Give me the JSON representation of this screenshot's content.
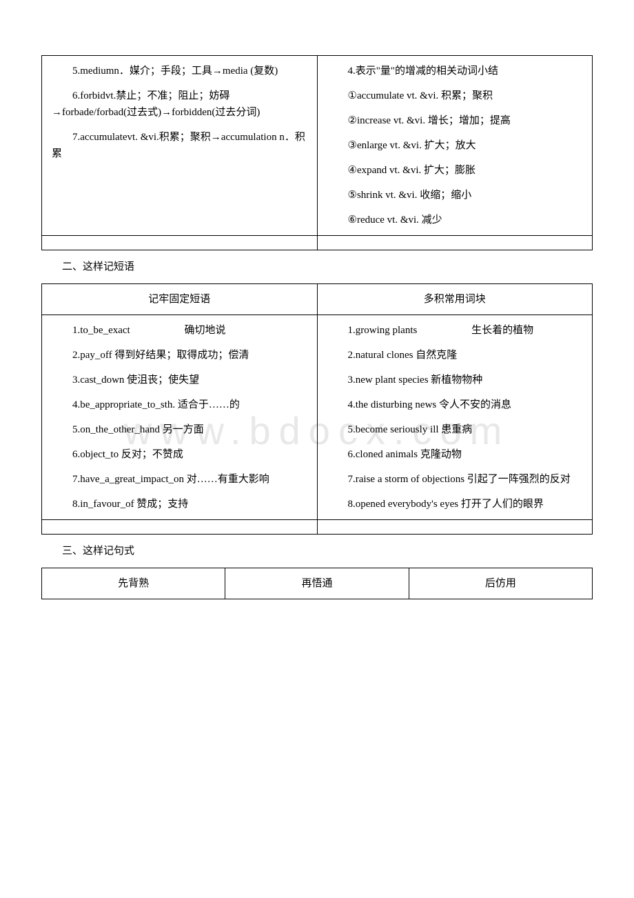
{
  "watermark": "www.bdocx.com",
  "table1": {
    "left": {
      "items": [
        "5.mediumn．媒介；手段；工具→media (复数)",
        "6.forbidvt.禁止；不准；阻止；妨碍→forbade/forbad(过去式)→forbidden(过去分词)",
        "7.accumulatevt. &vi.积累；聚积→accumulation n．积累"
      ]
    },
    "right": {
      "header": "4.表示\"量\"的增减的相关动词小结",
      "items": [
        "①accumulate vt. &vi. 积累；聚积",
        "②increase vt. &vi. 增长；增加；提高",
        "③enlarge vt. &vi. 扩大；放大",
        "④expand vt. &vi. 扩大；膨胀",
        "⑤shrink vt. &vi. 收缩；缩小",
        "⑥reduce vt. &vi. 减少"
      ]
    }
  },
  "section2": {
    "title": "二、这样记短语",
    "headers": {
      "left": "记牢固定短语",
      "right": "多积常用词块"
    },
    "left_items": [
      "1.to_be_exact　　　　　 确切地说",
      "2.pay_off 得到好结果；取得成功；偿清",
      "3.cast_down 使沮丧；使失望",
      "4.be_appropriate_to_sth. 适合于……的",
      "5.on_the_other_hand 另一方面",
      "6.object_to 反对；不赞成",
      "7.have_a_great_impact_on 对……有重大影响",
      "8.in_favour_of 赞成；支持"
    ],
    "right_items": [
      "1.growing plants　　　　　 生长着的植物",
      "2.natural clones 自然克隆",
      "3.new plant species 新植物物种",
      "4.the disturbing news 令人不安的消息",
      "5.become seriously ill 患重病",
      "6.cloned animals 克隆动物",
      "7.raise a storm of objections 引起了一阵强烈的反对",
      "8.opened everybody's eyes 打开了人们的眼界"
    ]
  },
  "section3": {
    "title": "三、这样记句式",
    "headers": {
      "col1": "先背熟",
      "col2": "再悟通",
      "col3": "后仿用"
    }
  }
}
